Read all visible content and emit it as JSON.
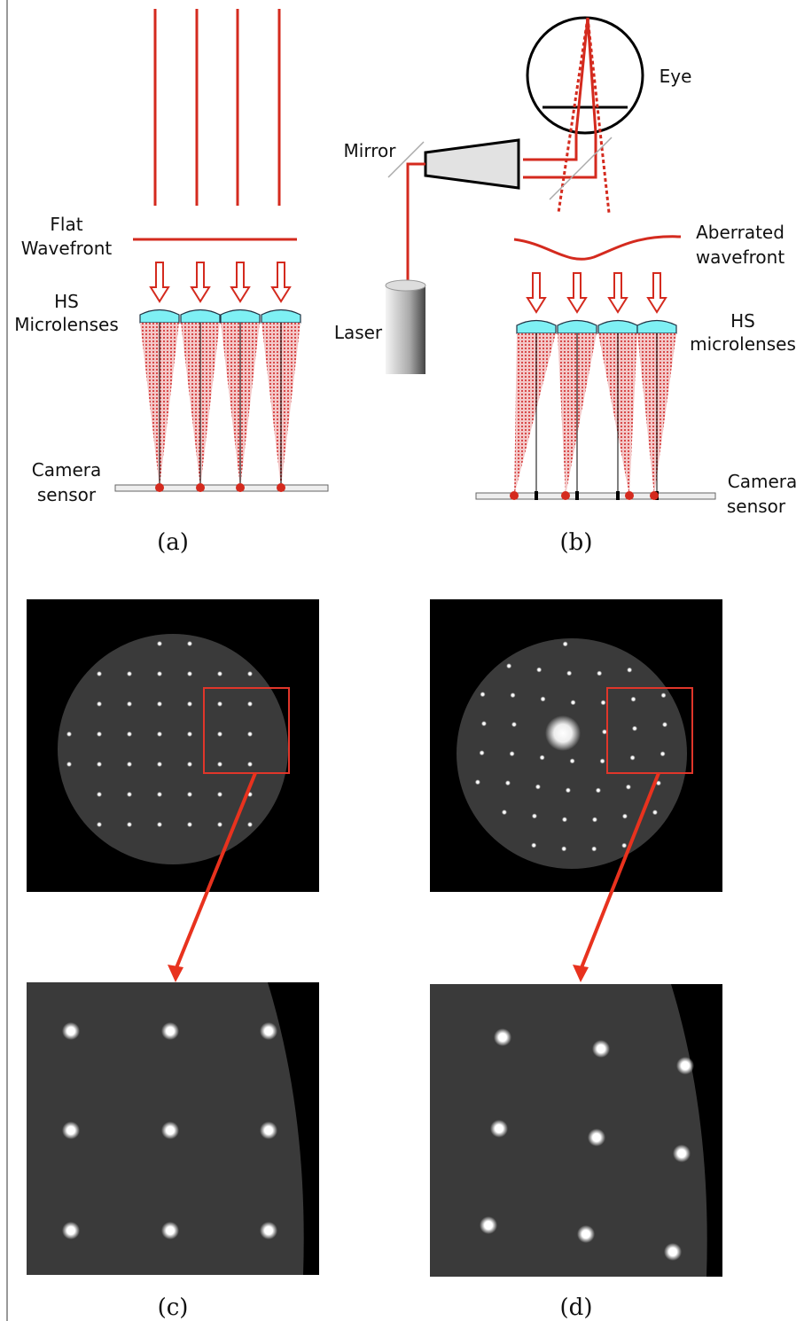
{
  "panel_a": {
    "flat_wavefront": [
      "Flat",
      "Wavefront"
    ],
    "microlenses": [
      "HS",
      "Microlenses"
    ],
    "camera_sensor": [
      "Camera",
      "sensor"
    ],
    "caption": "(a)"
  },
  "panel_b": {
    "mirror": "Mirror",
    "eye": "Eye",
    "aberrated_wavefront": [
      "Aberrated",
      "wavefront"
    ],
    "laser": "Laser",
    "microlenses": [
      "HS",
      "microlenses"
    ],
    "camera_sensor": [
      "Camera",
      "sensor"
    ],
    "caption": "(b)"
  },
  "panel_c": {
    "caption": "(c)"
  },
  "panel_d": {
    "caption": "(d)"
  }
}
